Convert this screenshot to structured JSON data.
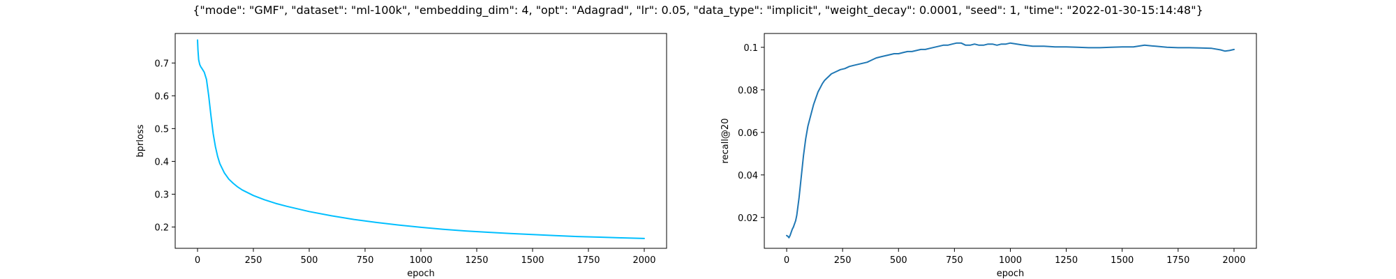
{
  "figure": {
    "suptitle": "{\"mode\": \"GMF\", \"dataset\": \"ml-100k\", \"embedding_dim\": 4, \"opt\": \"Adagrad\", \"lr\": 0.05, \"data_type\": \"implicit\", \"weight_decay\": 0.0001, \"seed\": 1, \"time\": \"2022-01-30-15:14:48\"}"
  },
  "chart_data": [
    {
      "type": "line",
      "title": "",
      "xlabel": "epoch",
      "ylabel": "bprloss",
      "xlim": [
        -100,
        2100
      ],
      "ylim": [
        0.135,
        0.79
      ],
      "xticks": [
        0,
        250,
        500,
        750,
        1000,
        1250,
        1500,
        1750,
        2000
      ],
      "yticks": [
        0.2,
        0.3,
        0.4,
        0.5,
        0.6,
        0.7
      ],
      "grid": false,
      "legend": "none",
      "series": [
        {
          "color": "#00bfff",
          "x": [
            0,
            2,
            5,
            10,
            15,
            20,
            30,
            40,
            50,
            60,
            70,
            80,
            90,
            100,
            120,
            140,
            160,
            180,
            200,
            250,
            300,
            350,
            400,
            500,
            600,
            700,
            800,
            900,
            1000,
            1100,
            1200,
            1300,
            1400,
            1500,
            1600,
            1700,
            1800,
            1900,
            2000
          ],
          "values": [
            0.77,
            0.74,
            0.71,
            0.695,
            0.688,
            0.683,
            0.672,
            0.65,
            0.6,
            0.54,
            0.485,
            0.445,
            0.415,
            0.393,
            0.365,
            0.346,
            0.333,
            0.322,
            0.313,
            0.296,
            0.283,
            0.272,
            0.263,
            0.247,
            0.234,
            0.223,
            0.214,
            0.206,
            0.199,
            0.193,
            0.188,
            0.184,
            0.18,
            0.177,
            0.174,
            0.171,
            0.169,
            0.167,
            0.165
          ]
        }
      ]
    },
    {
      "type": "line",
      "title": "",
      "xlabel": "epoch",
      "ylabel": "recall@20",
      "xlim": [
        -100,
        2100
      ],
      "ylim": [
        0.0055,
        0.1065
      ],
      "xticks": [
        0,
        250,
        500,
        750,
        1000,
        1250,
        1500,
        1750,
        2000
      ],
      "yticks": [
        0.02,
        0.04,
        0.06,
        0.08,
        0.1
      ],
      "grid": false,
      "legend": "none",
      "series": [
        {
          "color": "#1f77b4",
          "x": [
            0,
            5,
            10,
            15,
            20,
            25,
            30,
            35,
            40,
            45,
            50,
            55,
            60,
            65,
            70,
            75,
            80,
            85,
            90,
            95,
            100,
            110,
            120,
            130,
            140,
            150,
            160,
            170,
            180,
            190,
            200,
            220,
            240,
            260,
            280,
            300,
            320,
            340,
            360,
            380,
            400,
            420,
            440,
            460,
            480,
            500,
            520,
            540,
            560,
            580,
            600,
            620,
            640,
            660,
            680,
            700,
            720,
            740,
            760,
            780,
            800,
            820,
            840,
            860,
            880,
            900,
            920,
            940,
            960,
            980,
            1000,
            1050,
            1100,
            1150,
            1200,
            1250,
            1300,
            1350,
            1400,
            1450,
            1500,
            1550,
            1600,
            1650,
            1700,
            1750,
            1800,
            1850,
            1900,
            1940,
            1960,
            1980,
            2000
          ],
          "values": [
            0.0115,
            0.0112,
            0.0105,
            0.0115,
            0.013,
            0.0145,
            0.0155,
            0.017,
            0.0185,
            0.021,
            0.025,
            0.029,
            0.034,
            0.039,
            0.044,
            0.049,
            0.053,
            0.057,
            0.06,
            0.063,
            0.065,
            0.069,
            0.073,
            0.076,
            0.079,
            0.081,
            0.083,
            0.0845,
            0.0855,
            0.0865,
            0.0875,
            0.0885,
            0.0895,
            0.09,
            0.091,
            0.0915,
            0.092,
            0.0925,
            0.093,
            0.094,
            0.095,
            0.0955,
            0.096,
            0.0965,
            0.097,
            0.097,
            0.0975,
            0.098,
            0.098,
            0.0985,
            0.099,
            0.099,
            0.0995,
            0.1,
            0.1005,
            0.101,
            0.101,
            0.1015,
            0.102,
            0.102,
            0.101,
            0.101,
            0.1015,
            0.101,
            0.101,
            0.1015,
            0.1015,
            0.101,
            0.1015,
            0.1015,
            0.102,
            0.1012,
            0.1005,
            0.1005,
            0.1002,
            0.1002,
            0.1,
            0.0998,
            0.0998,
            0.1,
            0.1002,
            0.1002,
            0.101,
            0.1005,
            0.1,
            0.0998,
            0.0998,
            0.0997,
            0.0995,
            0.0988,
            0.0982,
            0.0985,
            0.099
          ]
        }
      ]
    }
  ]
}
